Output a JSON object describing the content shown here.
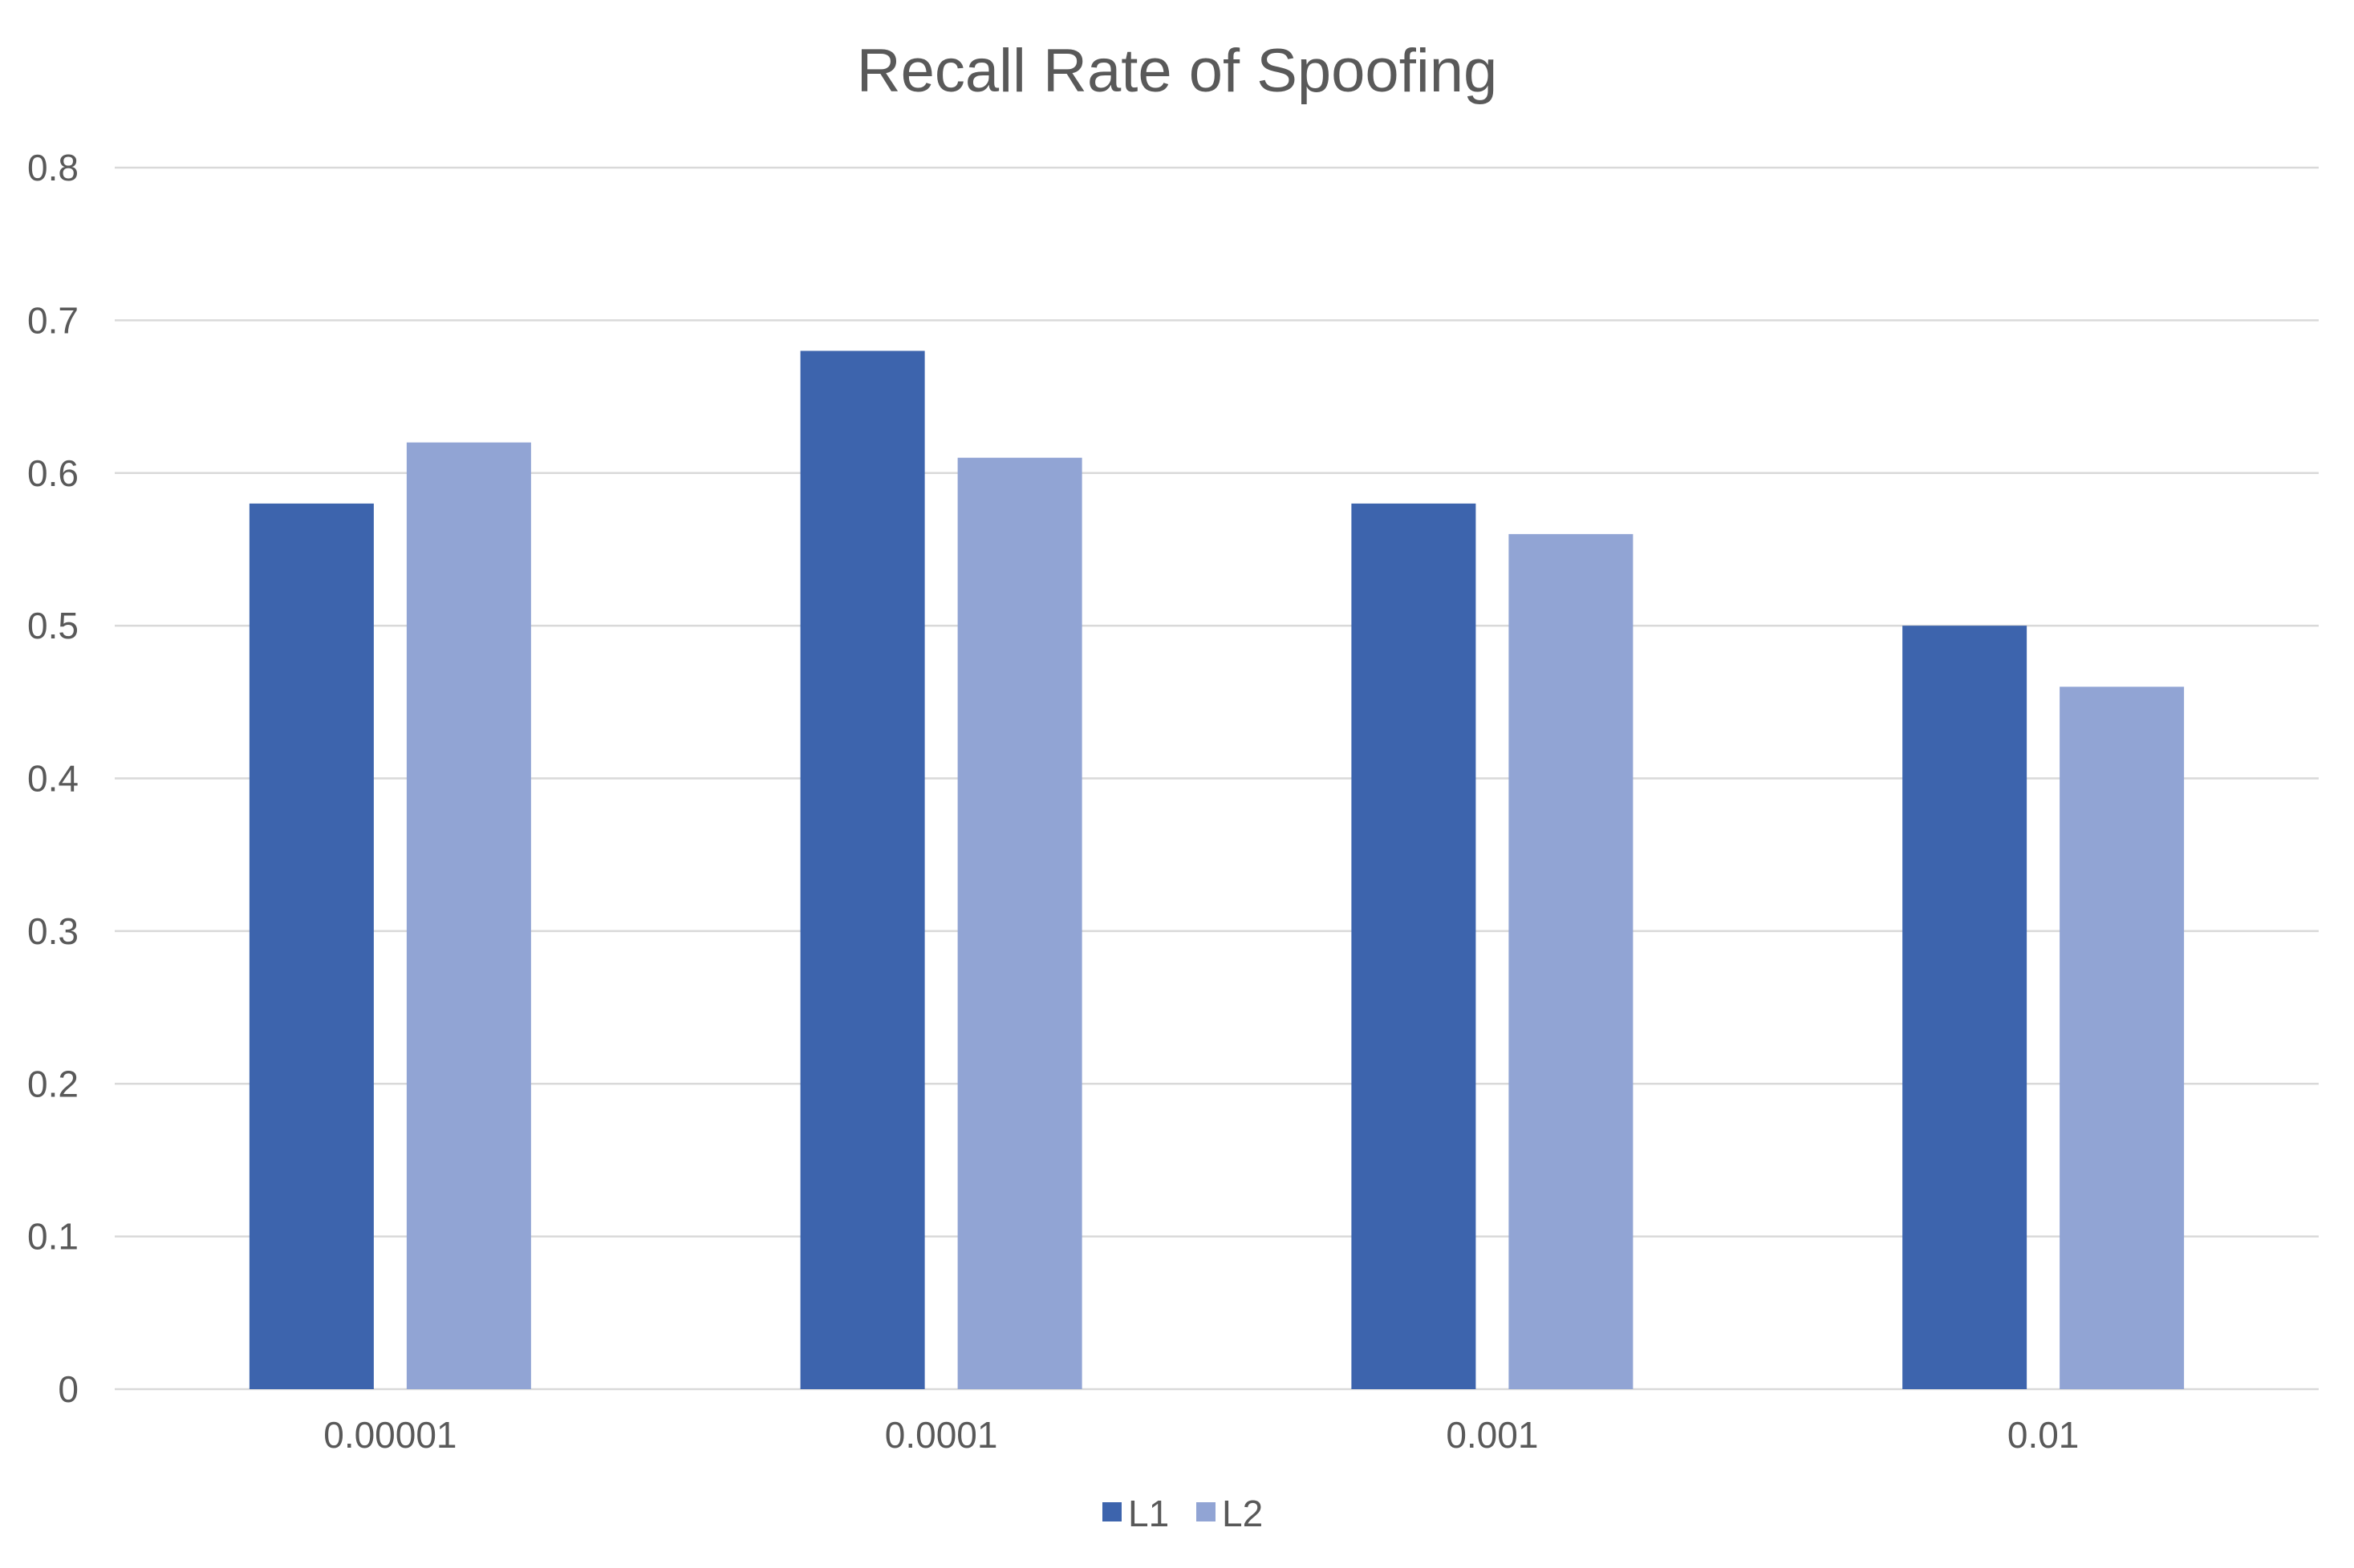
{
  "chart_data": {
    "type": "bar",
    "title": "Recall Rate of Spoofing",
    "xlabel": "",
    "ylabel": "",
    "categories": [
      "0.00001",
      "0.0001",
      "0.001",
      "0.01"
    ],
    "series": [
      {
        "name": "L1",
        "values": [
          0.58,
          0.68,
          0.58,
          0.5
        ],
        "color": "#3d64ad"
      },
      {
        "name": "L2",
        "values": [
          0.62,
          0.61,
          0.56,
          0.46
        ],
        "color": "#91a4d4"
      }
    ],
    "ylim": [
      0,
      0.8
    ],
    "yticks": [
      0,
      0.1,
      0.2,
      0.3,
      0.4,
      0.5,
      0.6,
      0.7,
      0.8
    ],
    "ytick_labels": [
      "0",
      "0.1",
      "0.2",
      "0.3",
      "0.4",
      "0.5",
      "0.6",
      "0.7",
      "0.8"
    ],
    "grid": true,
    "legend_position": "bottom",
    "gridline_color": "#d9d9d9",
    "text_color": "#595959"
  }
}
